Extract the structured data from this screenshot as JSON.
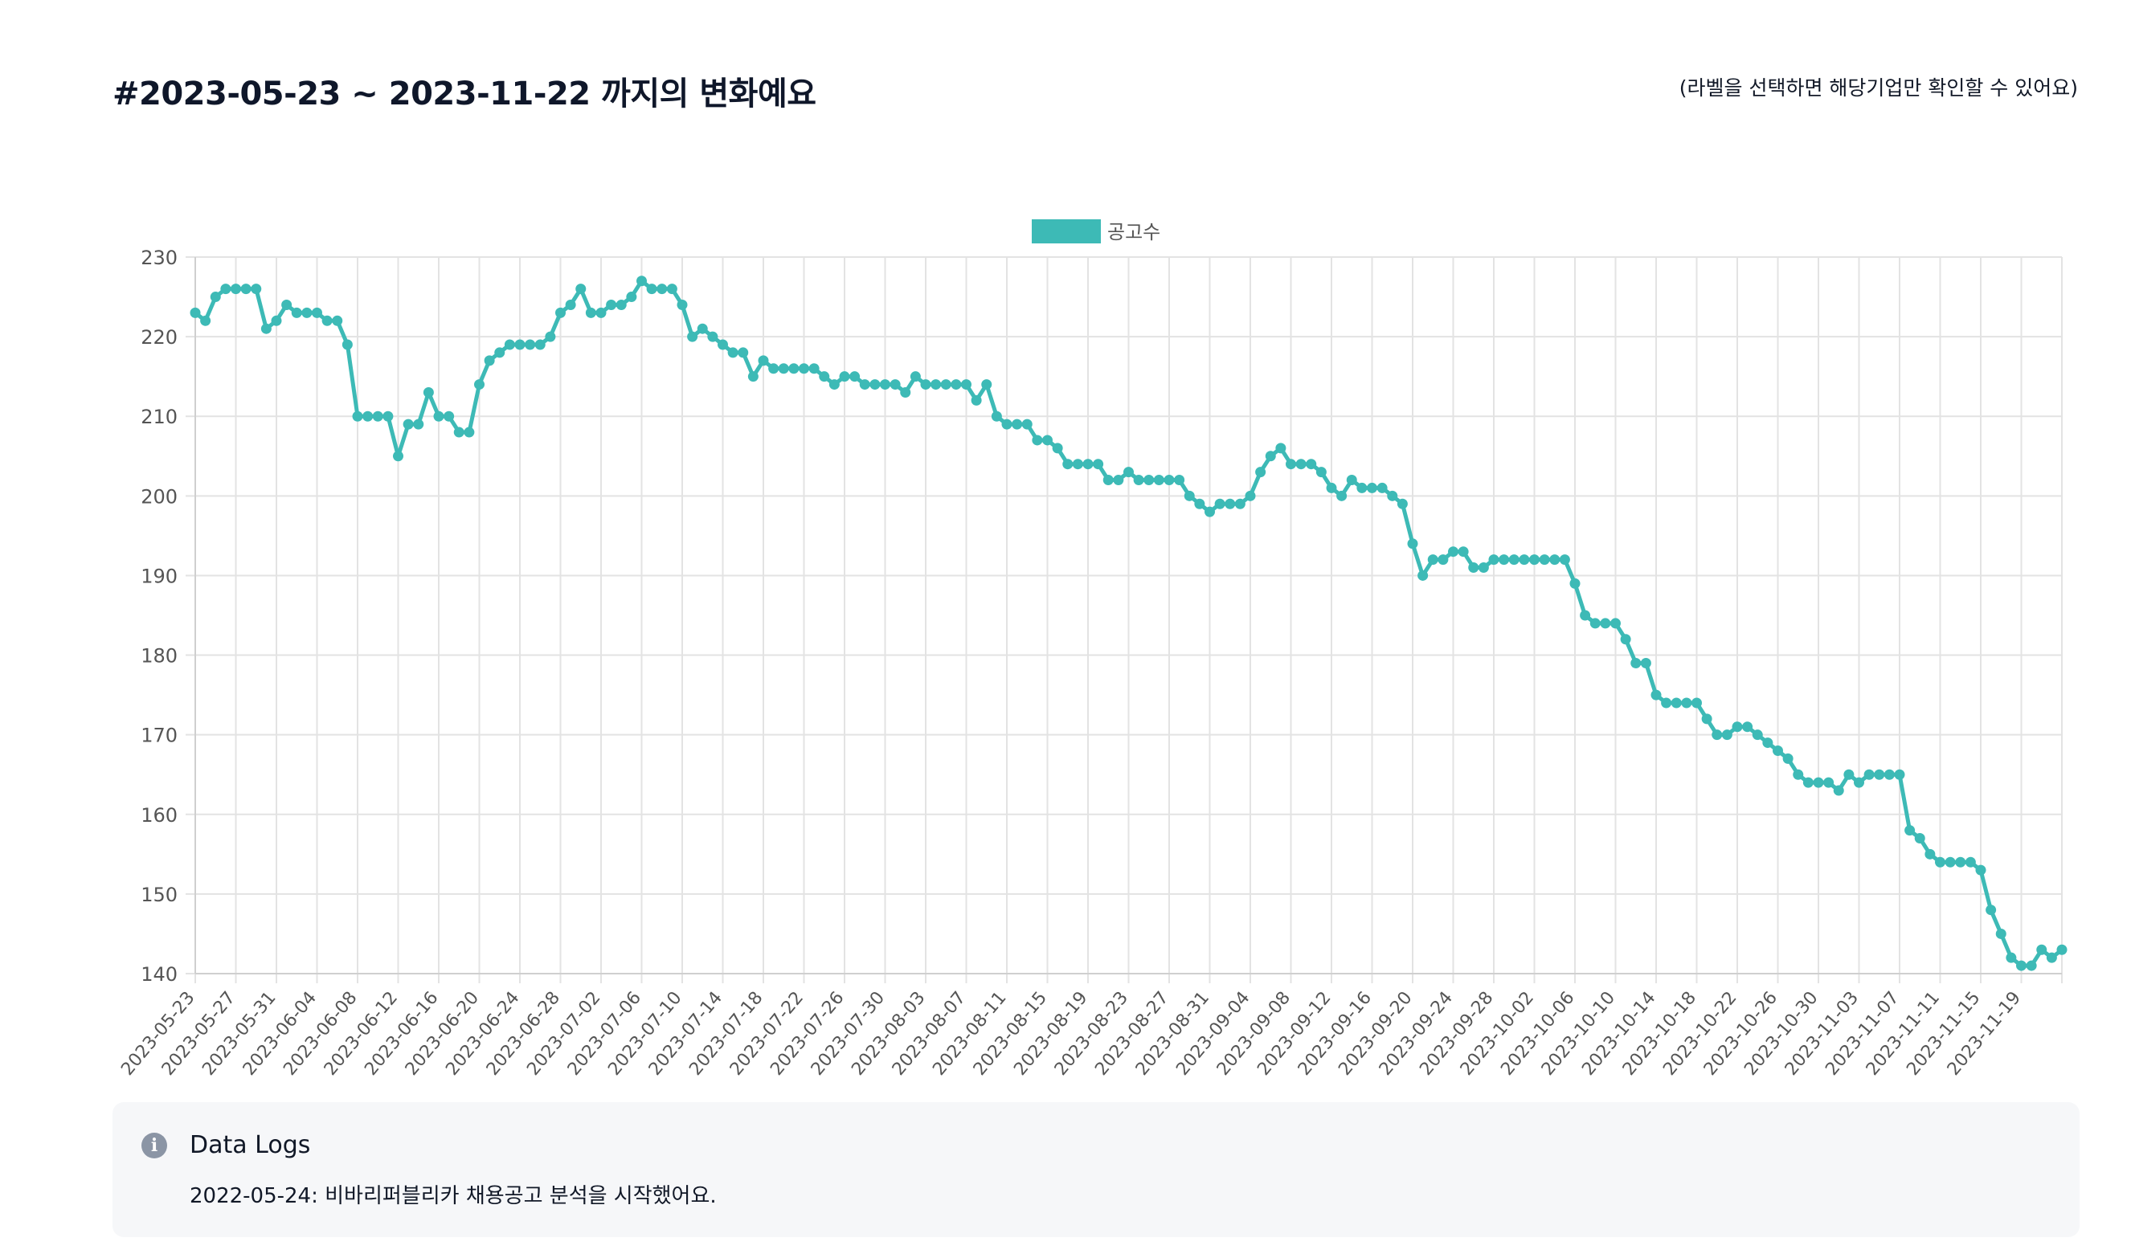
{
  "header": {
    "title": "#2023-05-23 ~ 2023-11-22 까지의 변화예요",
    "hint": "(라벨을 선택하면 해당기업만 확인할 수 있어요)"
  },
  "colors": {
    "series": "#3dbab6",
    "grid": "#e3e3e3",
    "axis_text": "#555555"
  },
  "chart_data": {
    "type": "line",
    "x_start": "2023-05-23",
    "x_end": "2023-11-22",
    "x_tick_labels": [
      "2023-05-23",
      "2023-05-27",
      "2023-05-31",
      "2023-06-04",
      "2023-06-08",
      "2023-06-12",
      "2023-06-16",
      "2023-06-20",
      "2023-06-24",
      "2023-06-28",
      "2023-07-02",
      "2023-07-06",
      "2023-07-10",
      "2023-07-14",
      "2023-07-18",
      "2023-07-22",
      "2023-07-26",
      "2023-07-30",
      "2023-08-03",
      "2023-08-07",
      "2023-08-11",
      "2023-08-15",
      "2023-08-19",
      "2023-08-23",
      "2023-08-27",
      "2023-08-31",
      "2023-09-04",
      "2023-09-08",
      "2023-09-12",
      "2023-09-16",
      "2023-09-20",
      "2023-09-24",
      "2023-09-28",
      "2023-10-02",
      "2023-10-06",
      "2023-10-10",
      "2023-10-14",
      "2023-10-18",
      "2023-10-22",
      "2023-10-26",
      "2023-10-30",
      "2023-11-03",
      "2023-11-07",
      "2023-11-11",
      "2023-11-15",
      "2023-11-19"
    ],
    "ylim": [
      140,
      230
    ],
    "y_ticks": [
      140,
      150,
      160,
      170,
      180,
      190,
      200,
      210,
      220,
      230
    ],
    "grid": true,
    "legend_position": "top-center",
    "series": [
      {
        "name": "공고수",
        "values": [
          223,
          222,
          225,
          226,
          226,
          226,
          226,
          221,
          222,
          224,
          223,
          223,
          223,
          222,
          222,
          219,
          210,
          210,
          210,
          210,
          205,
          209,
          209,
          213,
          210,
          210,
          208,
          208,
          214,
          217,
          218,
          219,
          219,
          219,
          219,
          220,
          223,
          224,
          226,
          223,
          223,
          224,
          224,
          225,
          227,
          226,
          226,
          226,
          224,
          220,
          221,
          220,
          219,
          218,
          218,
          215,
          217,
          216,
          216,
          216,
          216,
          216,
          215,
          214,
          215,
          215,
          214,
          214,
          214,
          214,
          213,
          215,
          214,
          214,
          214,
          214,
          214,
          212,
          214,
          210,
          209,
          209,
          209,
          207,
          207,
          206,
          204,
          204,
          204,
          204,
          202,
          202,
          203,
          202,
          202,
          202,
          202,
          202,
          200,
          199,
          198,
          199,
          199,
          199,
          200,
          203,
          205,
          206,
          204,
          204,
          204,
          203,
          201,
          200,
          202,
          201,
          201,
          201,
          200,
          199,
          194,
          190,
          192,
          192,
          193,
          193,
          191,
          191,
          192,
          192,
          192,
          192,
          192,
          192,
          192,
          192,
          189,
          185,
          184,
          184,
          184,
          182,
          179,
          179,
          175,
          174,
          174,
          174,
          174,
          172,
          170,
          170,
          171,
          171,
          170,
          169,
          168,
          167,
          165,
          164,
          164,
          164,
          163,
          165,
          164,
          165,
          165,
          165,
          165,
          158,
          157,
          155,
          154,
          154,
          154,
          154,
          153,
          148,
          145,
          142,
          141,
          141,
          143,
          142,
          143
        ]
      }
    ]
  },
  "data_logs": {
    "title": "Data Logs",
    "icon": "info-icon",
    "entries": [
      "2022-05-24: 비바리퍼블리카 채용공고 분석을 시작했어요."
    ]
  }
}
